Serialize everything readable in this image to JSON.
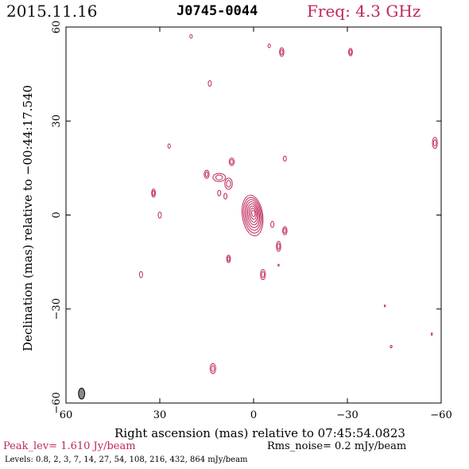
{
  "header": {
    "date": "2015.11.16",
    "source": "J0745-0044",
    "freq": "Freq: 4.3 GHz"
  },
  "footer": {
    "peak": "Peak_lev=  1.610 Jy/beam",
    "rms": "Rms_noise=  0.2 mJy/beam",
    "levels": "Levels: 0.8,   2,   3,   7,   14,   27,   54,  108,  216,  432,  864 mJy/beam"
  },
  "colors": {
    "contour": "#c0285a",
    "axis": "#000000",
    "beam": "#888888"
  },
  "chart_data": {
    "type": "contour",
    "xlabel": "Right ascension (mas) relative to 07:45:54.0823",
    "ylabel": "Declination (mas) relative to −00:44:17.540",
    "xlim": [
      60,
      -60
    ],
    "ylim": [
      -60,
      60
    ],
    "xticks": [
      60,
      30,
      0,
      -30,
      -60
    ],
    "yticks": [
      -60,
      -30,
      0,
      30,
      60
    ],
    "xtick_labels": [
      "60",
      "30",
      "0",
      "−30",
      "−60"
    ],
    "ytick_labels": [
      "−60",
      "−30",
      "0",
      "30",
      "60"
    ],
    "peak_jy_per_beam": 1.61,
    "rms_mjy_per_beam": 0.2,
    "levels_mjy_per_beam": [
      0.8,
      2,
      3,
      7,
      14,
      27,
      54,
      108,
      216,
      432,
      864
    ],
    "beam": {
      "x": 55,
      "y": -57,
      "major_mas": 3.5,
      "minor_mas": 2
    },
    "core": {
      "x": 0,
      "y": 0,
      "rings": 8
    },
    "components": [
      {
        "x": 20,
        "y": 57,
        "a": 0.4,
        "b": 0.6
      },
      {
        "x": -5,
        "y": 54,
        "a": 0.4,
        "b": 0.6
      },
      {
        "x": -9,
        "y": 52,
        "a": 0.7,
        "b": 1.4
      },
      {
        "x": -31,
        "y": 52,
        "a": 0.6,
        "b": 1.2
      },
      {
        "x": 14,
        "y": 42,
        "a": 0.5,
        "b": 0.9
      },
      {
        "x": 27,
        "y": 22,
        "a": 0.4,
        "b": 0.7
      },
      {
        "x": -10,
        "y": 18,
        "a": 0.5,
        "b": 0.8
      },
      {
        "x": 7,
        "y": 17,
        "a": 0.8,
        "b": 1.2
      },
      {
        "x": 15,
        "y": 13,
        "a": 0.8,
        "b": 1.3
      },
      {
        "x": 11,
        "y": 12,
        "a": 2.0,
        "b": 1.3
      },
      {
        "x": 8,
        "y": 10,
        "a": 1.2,
        "b": 1.8
      },
      {
        "x": 11,
        "y": 7,
        "a": 0.5,
        "b": 0.9
      },
      {
        "x": 9,
        "y": 6,
        "a": 0.5,
        "b": 0.9
      },
      {
        "x": 32,
        "y": 7,
        "a": 0.6,
        "b": 1.3
      },
      {
        "x": 30,
        "y": 0,
        "a": 0.5,
        "b": 1.0
      },
      {
        "x": -6,
        "y": -3,
        "a": 0.5,
        "b": 1.0
      },
      {
        "x": -10,
        "y": -5,
        "a": 0.7,
        "b": 1.3
      },
      {
        "x": -8,
        "y": -10,
        "a": 0.7,
        "b": 1.6
      },
      {
        "x": 8,
        "y": -14,
        "a": 0.6,
        "b": 1.2
      },
      {
        "x": -8,
        "y": -16,
        "a": 0.2,
        "b": 0.3
      },
      {
        "x": -3,
        "y": -19,
        "a": 0.8,
        "b": 1.6
      },
      {
        "x": 36,
        "y": -19,
        "a": 0.5,
        "b": 1.0
      },
      {
        "x": -58,
        "y": 23,
        "a": 0.8,
        "b": 1.8
      },
      {
        "x": -42,
        "y": -29,
        "a": 0.2,
        "b": 0.3
      },
      {
        "x": -44,
        "y": -42,
        "a": 0.3,
        "b": 0.4
      },
      {
        "x": -57,
        "y": -38,
        "a": 0.2,
        "b": 0.4
      },
      {
        "x": 13,
        "y": -49,
        "a": 0.9,
        "b": 1.6
      }
    ]
  }
}
